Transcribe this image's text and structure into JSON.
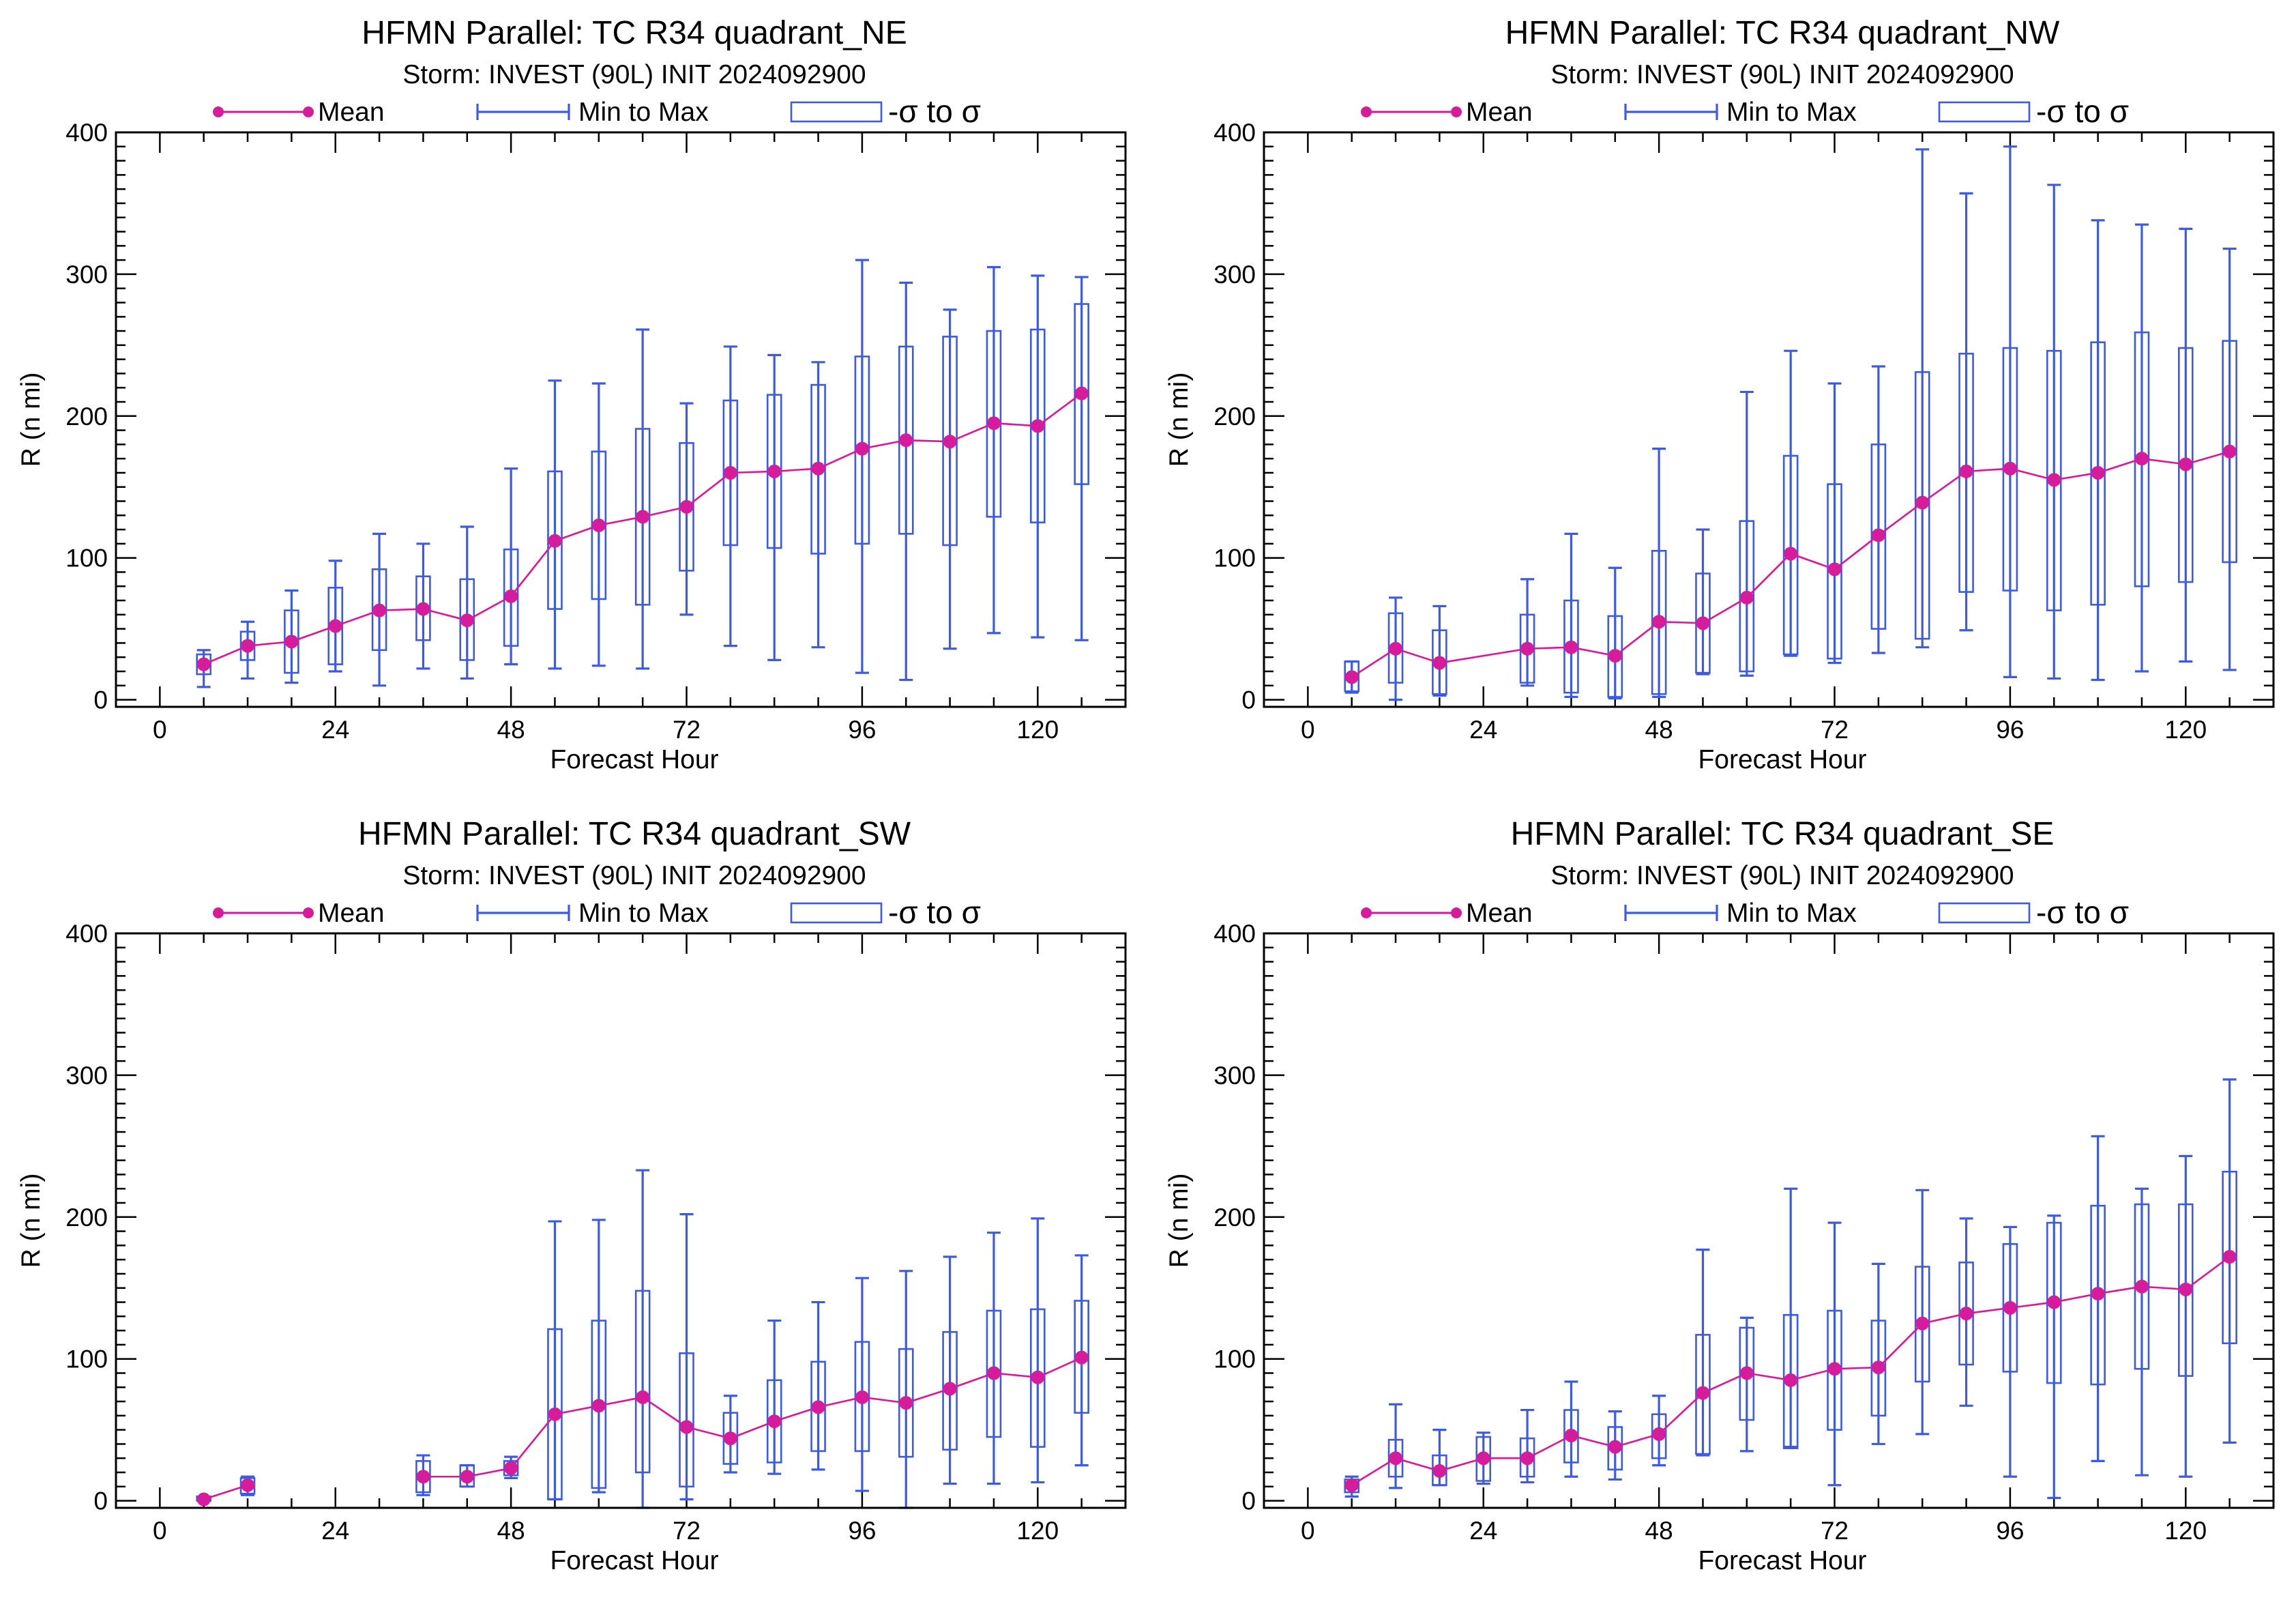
{
  "colors": {
    "mean": "#e0149c",
    "mean_marker": "#d61c9a",
    "range": "#3c5ae6",
    "axes": "#000000",
    "background": "#ffffff"
  },
  "legend": {
    "mean": "Mean",
    "range": "Min to Max",
    "sigma": "-σ to σ"
  },
  "chart_data": [
    {
      "type": "box",
      "title": "HFMN Parallel: TC  R34 quadrant_NE",
      "subtitle": "Storm: INVEST (90L) INIT 2024092900",
      "xlabel": "Forecast Hour",
      "ylabel": "R (n mi)",
      "xlim": [
        -6,
        132
      ],
      "ylim": [
        -5,
        400
      ],
      "xticks": [
        "0",
        "24",
        "48",
        "72",
        "96",
        "120"
      ],
      "yticks": [
        "0",
        "100",
        "200",
        "300",
        "400"
      ],
      "points": [
        {
          "h": 6,
          "mean": 25,
          "min": 9,
          "max": 35,
          "lo": 18,
          "hi": 32
        },
        {
          "h": 12,
          "mean": 38,
          "min": 15,
          "max": 55,
          "lo": 28,
          "hi": 48
        },
        {
          "h": 18,
          "mean": 41,
          "min": 12,
          "max": 77,
          "lo": 19,
          "hi": 63
        },
        {
          "h": 24,
          "mean": 52,
          "min": 20,
          "max": 98,
          "lo": 25,
          "hi": 79
        },
        {
          "h": 30,
          "mean": 63,
          "min": 10,
          "max": 117,
          "lo": 35,
          "hi": 92
        },
        {
          "h": 36,
          "mean": 64,
          "min": 22,
          "max": 110,
          "lo": 42,
          "hi": 87
        },
        {
          "h": 42,
          "mean": 56,
          "min": 15,
          "max": 122,
          "lo": 28,
          "hi": 85
        },
        {
          "h": 48,
          "mean": 73,
          "min": 25,
          "max": 163,
          "lo": 38,
          "hi": 106
        },
        {
          "h": 54,
          "mean": 112,
          "min": 22,
          "max": 225,
          "lo": 64,
          "hi": 161
        },
        {
          "h": 60,
          "mean": 123,
          "min": 24,
          "max": 223,
          "lo": 71,
          "hi": 175
        },
        {
          "h": 66,
          "mean": 129,
          "min": 22,
          "max": 261,
          "lo": 67,
          "hi": 191
        },
        {
          "h": 72,
          "mean": 136,
          "min": 60,
          "max": 209,
          "lo": 91,
          "hi": 181
        },
        {
          "h": 78,
          "mean": 160,
          "min": 38,
          "max": 249,
          "lo": 109,
          "hi": 211
        },
        {
          "h": 84,
          "mean": 161,
          "min": 28,
          "max": 243,
          "lo": 107,
          "hi": 215
        },
        {
          "h": 90,
          "mean": 163,
          "min": 37,
          "max": 238,
          "lo": 103,
          "hi": 222
        },
        {
          "h": 96,
          "mean": 177,
          "min": 19,
          "max": 310,
          "lo": 110,
          "hi": 242
        },
        {
          "h": 102,
          "mean": 183,
          "min": 14,
          "max": 294,
          "lo": 117,
          "hi": 249
        },
        {
          "h": 108,
          "mean": 182,
          "min": 36,
          "max": 275,
          "lo": 109,
          "hi": 256
        },
        {
          "h": 114,
          "mean": 195,
          "min": 47,
          "max": 305,
          "lo": 129,
          "hi": 260
        },
        {
          "h": 120,
          "mean": 193,
          "min": 44,
          "max": 299,
          "lo": 125,
          "hi": 261
        },
        {
          "h": 126,
          "mean": 216,
          "min": 42,
          "max": 298,
          "lo": 152,
          "hi": 279
        }
      ]
    },
    {
      "type": "box",
      "title": "HFMN Parallel: TC  R34 quadrant_NW",
      "subtitle": "Storm: INVEST (90L) INIT 2024092900",
      "xlabel": "Forecast Hour",
      "ylabel": "R (n mi)",
      "xlim": [
        -6,
        132
      ],
      "ylim": [
        -5,
        400
      ],
      "xticks": [
        "0",
        "24",
        "48",
        "72",
        "96",
        "120"
      ],
      "yticks": [
        "0",
        "100",
        "200",
        "300",
        "400"
      ],
      "points": [
        {
          "h": 6,
          "mean": 16,
          "min": 5,
          "max": 27,
          "lo": 6,
          "hi": 27
        },
        {
          "h": 12,
          "mean": 36,
          "min": 0,
          "max": 72,
          "lo": 12,
          "hi": 61
        },
        {
          "h": 18,
          "mean": 26,
          "min": 3,
          "max": 66,
          "lo": 4,
          "hi": 49
        },
        {
          "h": 30,
          "mean": 36,
          "min": 10,
          "max": 85,
          "lo": 12,
          "hi": 60
        },
        {
          "h": 36,
          "mean": 37,
          "min": 2,
          "max": 117,
          "lo": 5,
          "hi": 70
        },
        {
          "h": 42,
          "mean": 31,
          "min": 1,
          "max": 93,
          "lo": 2,
          "hi": 59
        },
        {
          "h": 48,
          "mean": 55,
          "min": 2,
          "max": 177,
          "lo": 4,
          "hi": 105
        },
        {
          "h": 54,
          "mean": 54,
          "min": 18,
          "max": 120,
          "lo": 19,
          "hi": 89
        },
        {
          "h": 60,
          "mean": 72,
          "min": 17,
          "max": 217,
          "lo": 20,
          "hi": 126
        },
        {
          "h": 66,
          "mean": 103,
          "min": 31,
          "max": 246,
          "lo": 32,
          "hi": 172
        },
        {
          "h": 72,
          "mean": 92,
          "min": 26,
          "max": 223,
          "lo": 29,
          "hi": 152
        },
        {
          "h": 78,
          "mean": 116,
          "min": 33,
          "max": 235,
          "lo": 50,
          "hi": 180
        },
        {
          "h": 84,
          "mean": 139,
          "min": 37,
          "max": 388,
          "lo": 43,
          "hi": 231
        },
        {
          "h": 90,
          "mean": 161,
          "min": 49,
          "max": 357,
          "lo": 76,
          "hi": 244
        },
        {
          "h": 96,
          "mean": 163,
          "min": 16,
          "max": 390,
          "lo": 77,
          "hi": 248
        },
        {
          "h": 102,
          "mean": 155,
          "min": 15,
          "max": 363,
          "lo": 63,
          "hi": 246
        },
        {
          "h": 108,
          "mean": 160,
          "min": 14,
          "max": 338,
          "lo": 67,
          "hi": 252
        },
        {
          "h": 114,
          "mean": 170,
          "min": 20,
          "max": 335,
          "lo": 80,
          "hi": 259
        },
        {
          "h": 120,
          "mean": 166,
          "min": 27,
          "max": 332,
          "lo": 83,
          "hi": 248
        },
        {
          "h": 126,
          "mean": 175,
          "min": 21,
          "max": 318,
          "lo": 97,
          "hi": 253
        }
      ]
    },
    {
      "type": "box",
      "title": "HFMN Parallel: TC  R34 quadrant_SW",
      "subtitle": "Storm: INVEST (90L) INIT 2024092900",
      "xlabel": "Forecast Hour",
      "ylabel": "R (n mi)",
      "xlim": [
        -6,
        132
      ],
      "ylim": [
        -5,
        400
      ],
      "xticks": [
        "0",
        "24",
        "48",
        "72",
        "96",
        "120"
      ],
      "yticks": [
        "0",
        "100",
        "200",
        "300",
        "400"
      ],
      "points": [
        {
          "h": 6,
          "mean": 1,
          "min": 0,
          "max": 3,
          "lo": 0,
          "hi": 3
        },
        {
          "h": 12,
          "mean": 11,
          "min": 4,
          "max": 17,
          "lo": 5,
          "hi": 16
        },
        {
          "h": 36,
          "mean": 17,
          "min": 4,
          "max": 32,
          "lo": 6,
          "hi": 28
        },
        {
          "h": 42,
          "mean": 17,
          "min": 10,
          "max": 25,
          "lo": 10,
          "hi": 25
        },
        {
          "h": 48,
          "mean": 23,
          "min": 16,
          "max": 31,
          "lo": 18,
          "hi": 28
        },
        {
          "h": 54,
          "mean": 61,
          "min": 1,
          "max": 197,
          "lo": 1,
          "hi": 121
        },
        {
          "h": 60,
          "mean": 67,
          "min": 6,
          "max": 198,
          "lo": 9,
          "hi": 127
        },
        {
          "h": 66,
          "mean": 73,
          "min": -5,
          "max": 233,
          "lo": 20,
          "hi": 148
        },
        {
          "h": 72,
          "mean": 52,
          "min": 1,
          "max": 202,
          "lo": 10,
          "hi": 104
        },
        {
          "h": 78,
          "mean": 44,
          "min": 20,
          "max": 74,
          "lo": 26,
          "hi": 62
        },
        {
          "h": 84,
          "mean": 56,
          "min": 19,
          "max": 127,
          "lo": 27,
          "hi": 85
        },
        {
          "h": 90,
          "mean": 66,
          "min": 22,
          "max": 140,
          "lo": 35,
          "hi": 98
        },
        {
          "h": 96,
          "mean": 73,
          "min": 7,
          "max": 157,
          "lo": 35,
          "hi": 112
        },
        {
          "h": 102,
          "mean": 69,
          "min": -5,
          "max": 162,
          "lo": 31,
          "hi": 107
        },
        {
          "h": 108,
          "mean": 79,
          "min": 12,
          "max": 172,
          "lo": 36,
          "hi": 119
        },
        {
          "h": 114,
          "mean": 90,
          "min": 12,
          "max": 189,
          "lo": 45,
          "hi": 134
        },
        {
          "h": 120,
          "mean": 87,
          "min": 13,
          "max": 199,
          "lo": 38,
          "hi": 135
        },
        {
          "h": 126,
          "mean": 101,
          "min": 25,
          "max": 173,
          "lo": 62,
          "hi": 141
        }
      ]
    },
    {
      "type": "box",
      "title": "HFMN Parallel: TC  R34 quadrant_SE",
      "subtitle": "Storm: INVEST (90L) INIT 2024092900",
      "xlabel": "Forecast Hour",
      "ylabel": "R (n mi)",
      "xlim": [
        -6,
        132
      ],
      "ylim": [
        -5,
        400
      ],
      "xticks": [
        "0",
        "24",
        "48",
        "72",
        "96",
        "120"
      ],
      "yticks": [
        "0",
        "100",
        "200",
        "300",
        "400"
      ],
      "points": [
        {
          "h": 6,
          "mean": 11,
          "min": 3,
          "max": 17,
          "lo": 6,
          "hi": 15
        },
        {
          "h": 12,
          "mean": 30,
          "min": 9,
          "max": 68,
          "lo": 17,
          "hi": 43
        },
        {
          "h": 18,
          "mean": 21,
          "min": 11,
          "max": 50,
          "lo": 11,
          "hi": 32
        },
        {
          "h": 24,
          "mean": 30,
          "min": 12,
          "max": 48,
          "lo": 14,
          "hi": 45
        },
        {
          "h": 30,
          "mean": 30,
          "min": 13,
          "max": 64,
          "lo": 17,
          "hi": 44
        },
        {
          "h": 36,
          "mean": 46,
          "min": 17,
          "max": 84,
          "lo": 27,
          "hi": 64
        },
        {
          "h": 42,
          "mean": 38,
          "min": 15,
          "max": 63,
          "lo": 22,
          "hi": 52
        },
        {
          "h": 48,
          "mean": 47,
          "min": 25,
          "max": 74,
          "lo": 30,
          "hi": 61
        },
        {
          "h": 54,
          "mean": 76,
          "min": 32,
          "max": 177,
          "lo": 33,
          "hi": 117
        },
        {
          "h": 60,
          "mean": 90,
          "min": 35,
          "max": 129,
          "lo": 57,
          "hi": 122
        },
        {
          "h": 66,
          "mean": 85,
          "min": 38,
          "max": 220,
          "lo": 37,
          "hi": 131
        },
        {
          "h": 72,
          "mean": 93,
          "min": 11,
          "max": 196,
          "lo": 50,
          "hi": 134
        },
        {
          "h": 78,
          "mean": 94,
          "min": 40,
          "max": 167,
          "lo": 60,
          "hi": 127
        },
        {
          "h": 84,
          "mean": 125,
          "min": 47,
          "max": 219,
          "lo": 84,
          "hi": 165
        },
        {
          "h": 90,
          "mean": 132,
          "min": 67,
          "max": 199,
          "lo": 96,
          "hi": 168
        },
        {
          "h": 96,
          "mean": 136,
          "min": 17,
          "max": 193,
          "lo": 91,
          "hi": 181
        },
        {
          "h": 102,
          "mean": 140,
          "min": 2,
          "max": 201,
          "lo": 83,
          "hi": 196
        },
        {
          "h": 108,
          "mean": 146,
          "min": 28,
          "max": 257,
          "lo": 82,
          "hi": 208
        },
        {
          "h": 114,
          "mean": 151,
          "min": 18,
          "max": 220,
          "lo": 93,
          "hi": 209
        },
        {
          "h": 120,
          "mean": 149,
          "min": 17,
          "max": 243,
          "lo": 88,
          "hi": 209
        },
        {
          "h": 126,
          "mean": 172,
          "min": 41,
          "max": 297,
          "lo": 111,
          "hi": 232
        }
      ]
    }
  ]
}
